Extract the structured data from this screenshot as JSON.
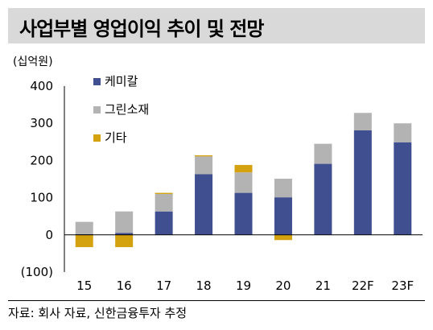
{
  "title": "사업부별 영업이익 추이 및 전망",
  "unit": "(십억원)",
  "source": "자료: 회사 자료, 신한금융투자 추정",
  "colors": {
    "chem": "#3f4f8f",
    "green": "#b3b3b3",
    "other": "#d4a20f"
  },
  "chart_data": {
    "type": "bar",
    "stacked": true,
    "categories": [
      "15",
      "16",
      "17",
      "18",
      "19",
      "20",
      "21",
      "22F",
      "23F"
    ],
    "series": [
      {
        "name": "케미칼",
        "values": [
          2,
          5,
          63,
          163,
          113,
          101,
          191,
          281,
          249
        ]
      },
      {
        "name": "그린소재",
        "values": [
          33,
          58,
          47,
          48,
          55,
          50,
          54,
          47,
          51
        ]
      },
      {
        "name": "기타",
        "values": [
          -33,
          -33,
          3,
          3,
          20,
          -14,
          0,
          0,
          0
        ]
      }
    ],
    "yticks": [
      "400",
      "300",
      "200",
      "100",
      "0",
      "(100)"
    ],
    "ylim": [
      -100,
      400
    ],
    "legend": "top-left",
    "grid": false
  }
}
